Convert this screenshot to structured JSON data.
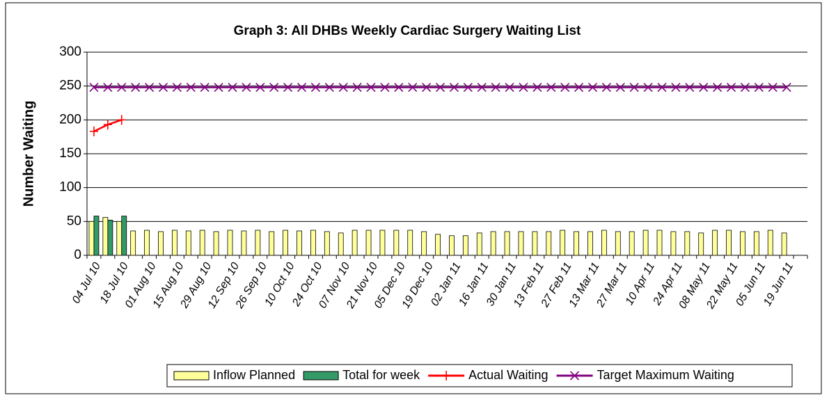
{
  "chart_data": {
    "type": "bar",
    "title": "Graph 3: All DHBs Weekly Cardiac Surgery Waiting List",
    "y_label": "Number Waiting",
    "categories": [
      "04 Jul 10",
      null,
      "18 Jul 10",
      null,
      "01 Aug 10",
      null,
      "15 Aug 10",
      null,
      "29 Aug 10",
      null,
      "12 Sep 10",
      null,
      "26 Sep 10",
      null,
      "10 Oct 10",
      null,
      "24 Oct 10",
      null,
      "07 Nov 10",
      null,
      "21 Nov 10",
      null,
      "05 Dec 10",
      null,
      "19 Dec 10",
      null,
      "02 Jan 11",
      null,
      "16 Jan 11",
      null,
      "30 Jan 11",
      null,
      "13 Feb 11",
      null,
      "27 Feb 11",
      null,
      "13 Mar 11",
      null,
      "27 Mar 11",
      null,
      "10 Apr 11",
      null,
      "24 Apr 11",
      null,
      "08 May 11",
      null,
      "22 May 11",
      null,
      "05 Jun 11",
      null,
      "19 Jun 11",
      null
    ],
    "series": [
      {
        "name": "Inflow Planned",
        "type": "bar",
        "color": "#ffff99",
        "values": [
          50,
          56,
          50,
          36,
          37,
          35,
          37,
          36,
          37,
          35,
          37,
          36,
          37,
          35,
          37,
          36,
          37,
          35,
          33,
          37,
          37,
          37,
          37,
          37,
          35,
          31,
          29,
          29,
          33,
          35,
          35,
          35,
          35,
          35,
          37,
          35,
          35,
          37,
          35,
          35,
          37,
          37,
          35,
          35,
          33,
          37,
          37,
          35,
          35,
          37,
          33,
          null
        ]
      },
      {
        "name": "Total for week",
        "type": "bar",
        "color": "#339966",
        "values": [
          58,
          52,
          58,
          null,
          null,
          null,
          null,
          null,
          null,
          null,
          null,
          null,
          null,
          null,
          null,
          null,
          null,
          null,
          null,
          null,
          null,
          null,
          null,
          null,
          null,
          null,
          null,
          null,
          null,
          null,
          null,
          null,
          null,
          null,
          null,
          null,
          null,
          null,
          null,
          null,
          null,
          null,
          null,
          null,
          null,
          null,
          null,
          null,
          null,
          null,
          null,
          null
        ]
      },
      {
        "name": "Actual Waiting",
        "type": "line",
        "marker": "plus",
        "color": "#ff0000",
        "values": [
          183,
          193,
          200,
          null,
          null,
          null,
          null,
          null,
          null,
          null,
          null,
          null,
          null,
          null,
          null,
          null,
          null,
          null,
          null,
          null,
          null,
          null,
          null,
          null,
          null,
          null,
          null,
          null,
          null,
          null,
          null,
          null,
          null,
          null,
          null,
          null,
          null,
          null,
          null,
          null,
          null,
          null,
          null,
          null,
          null,
          null,
          null,
          null,
          null,
          null,
          null,
          null
        ]
      },
      {
        "name": "Target Maximum Waiting",
        "type": "line",
        "marker": "x",
        "color": "#800080",
        "values": [
          248,
          248,
          248,
          248,
          248,
          248,
          248,
          248,
          248,
          248,
          248,
          248,
          248,
          248,
          248,
          248,
          248,
          248,
          248,
          248,
          248,
          248,
          248,
          248,
          248,
          248,
          248,
          248,
          248,
          248,
          248,
          248,
          248,
          248,
          248,
          248,
          248,
          248,
          248,
          248,
          248,
          248,
          248,
          248,
          248,
          248,
          248,
          248,
          248,
          248,
          248,
          null
        ]
      }
    ],
    "ylim": [
      0,
      300
    ],
    "yticks": [
      0,
      50,
      100,
      150,
      200,
      250,
      300
    ],
    "grid": true,
    "legend": "bottom"
  }
}
